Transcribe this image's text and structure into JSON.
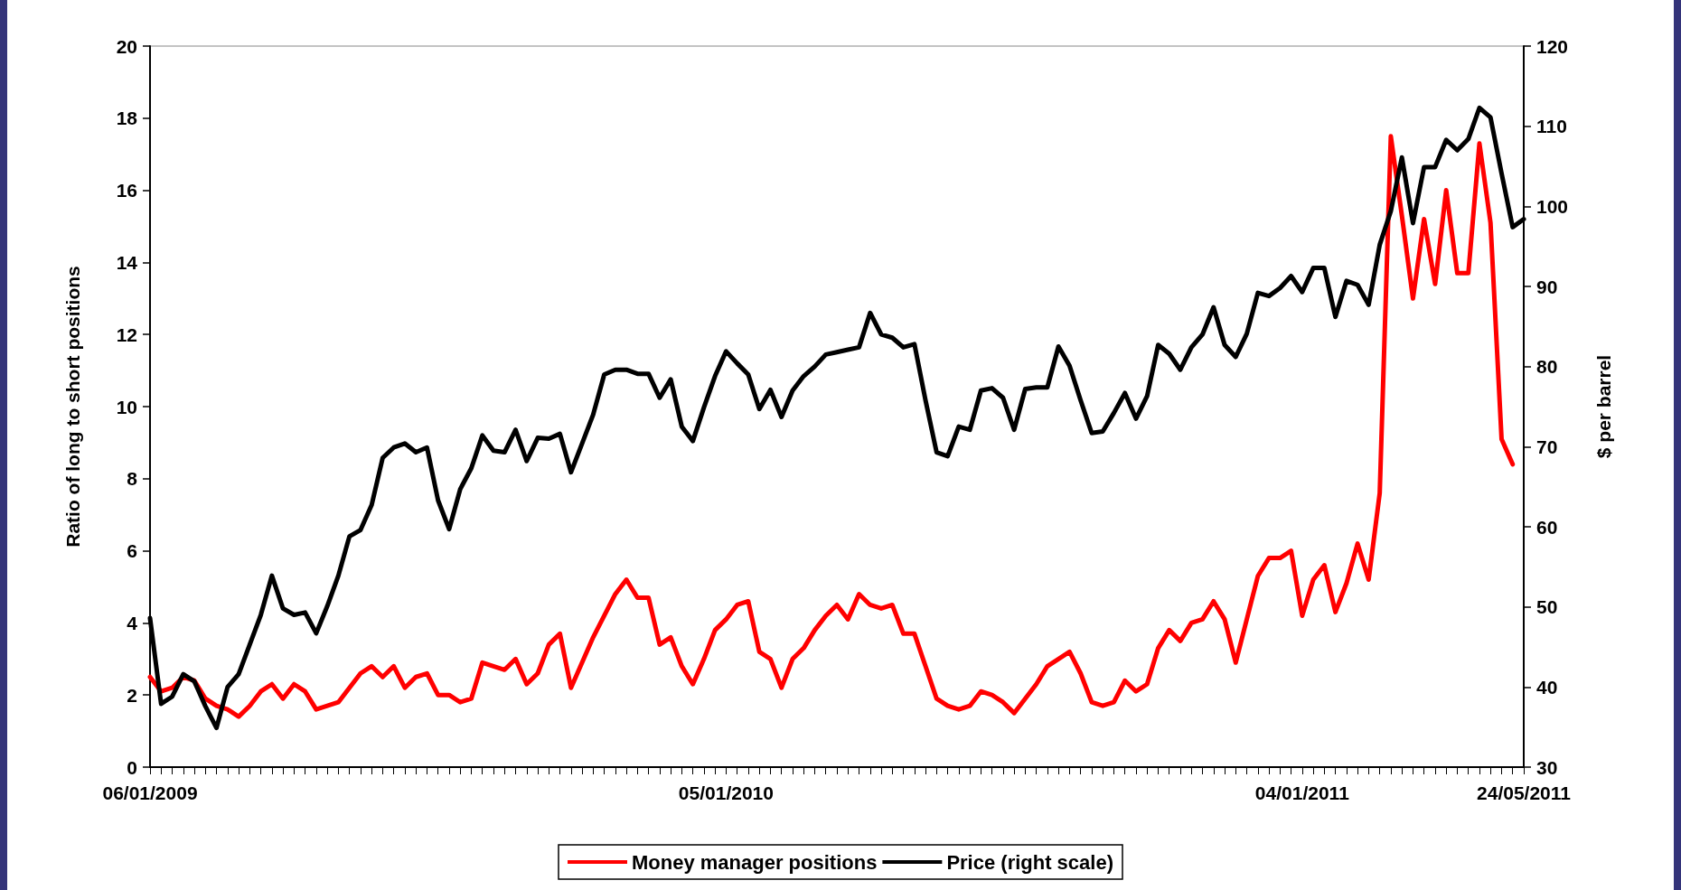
{
  "chart_data": {
    "type": "line",
    "ylabel": "Ratio of long to short positions",
    "y2label": "$ per barrel",
    "categories": [
      "06/01/2009",
      null,
      null,
      null,
      null,
      null,
      null,
      null,
      null,
      null,
      null,
      null,
      null,
      null,
      null,
      null,
      null,
      null,
      null,
      null,
      null,
      null,
      null,
      null,
      null,
      null,
      null,
      null,
      null,
      null,
      null,
      null,
      null,
      null,
      null,
      null,
      null,
      null,
      null,
      null,
      null,
      null,
      null,
      null,
      null,
      null,
      null,
      null,
      null,
      null,
      null,
      null,
      "05/01/2010",
      null,
      null,
      null,
      null,
      null,
      null,
      null,
      null,
      null,
      null,
      null,
      null,
      null,
      null,
      null,
      null,
      null,
      null,
      null,
      null,
      null,
      null,
      null,
      null,
      null,
      null,
      null,
      null,
      null,
      null,
      null,
      null,
      null,
      null,
      null,
      null,
      null,
      null,
      null,
      null,
      null,
      null,
      null,
      null,
      null,
      null,
      null,
      null,
      null,
      null,
      null,
      "04/01/2011",
      null,
      null,
      null,
      null,
      null,
      null,
      null,
      null,
      null,
      null,
      null,
      null,
      null,
      null,
      null,
      null,
      null,
      null,
      null,
      "24/05/2011"
    ],
    "series": [
      {
        "name": "Money manager positions",
        "color": "#ff0000",
        "values": [
          2.5,
          2.1,
          2.2,
          2.5,
          2.4,
          1.9,
          1.7,
          1.6,
          1.4,
          1.7,
          2.1,
          2.3,
          1.9,
          2.3,
          2.1,
          1.6,
          1.7,
          1.8,
          2.2,
          2.6,
          2.8,
          2.5,
          2.8,
          2.2,
          2.5,
          2.6,
          2.0,
          2.0,
          1.8,
          1.9,
          2.9,
          2.8,
          2.7,
          3.0,
          2.3,
          2.6,
          3.4,
          3.7,
          2.2,
          2.9,
          3.6,
          4.2,
          4.8,
          5.2,
          4.7,
          4.7,
          3.4,
          3.6,
          2.8,
          2.3,
          3.0,
          3.8,
          4.1,
          4.5,
          4.6,
          3.2,
          3.0,
          2.2,
          3.0,
          3.3,
          3.8,
          4.2,
          4.5,
          4.1,
          4.8,
          4.5,
          4.4,
          4.5,
          3.7,
          3.7,
          2.8,
          1.9,
          1.7,
          1.6,
          1.7,
          2.1,
          2.0,
          1.8,
          1.5,
          1.9,
          2.3,
          2.8,
          3.0,
          3.2,
          2.6,
          1.8,
          1.7,
          1.8,
          2.4,
          2.1,
          2.3,
          3.3,
          3.8,
          3.5,
          4.0,
          4.1,
          4.6,
          4.1,
          2.9,
          4.1,
          5.3,
          5.8,
          5.8,
          6.0,
          4.2,
          5.2,
          5.6,
          4.3,
          5.1,
          6.2,
          5.2,
          7.6,
          17.5,
          15.3,
          13.0,
          15.2,
          13.4,
          16.0,
          13.7,
          13.7,
          17.3,
          15.1,
          9.1,
          8.4,
          null
        ]
      },
      {
        "name": "Price (right scale)",
        "color": "#000000",
        "axis": "y2",
        "values": [
          48.6,
          37.9,
          38.8,
          41.6,
          40.7,
          37.6,
          34.9,
          40.0,
          41.6,
          45.3,
          49.0,
          53.9,
          49.8,
          49.0,
          49.3,
          46.7,
          50.1,
          53.9,
          58.8,
          59.6,
          62.7,
          68.6,
          69.9,
          70.4,
          69.3,
          69.9,
          63.3,
          59.7,
          64.7,
          67.3,
          71.4,
          69.5,
          69.3,
          72.1,
          68.2,
          71.1,
          71.0,
          71.6,
          66.8,
          70.4,
          74.0,
          79.0,
          79.6,
          79.6,
          79.1,
          79.1,
          76.1,
          78.4,
          72.5,
          70.7,
          74.9,
          78.8,
          81.9,
          80.4,
          79.0,
          74.7,
          77.1,
          73.7,
          77.0,
          78.8,
          80.0,
          81.5,
          81.8,
          82.1,
          82.4,
          86.7,
          84.0,
          83.6,
          82.4,
          82.8,
          75.8,
          69.3,
          68.8,
          72.5,
          72.1,
          77.0,
          77.3,
          76.1,
          72.1,
          77.2,
          77.4,
          77.4,
          82.5,
          80.1,
          75.8,
          71.7,
          71.9,
          74.2,
          76.7,
          73.5,
          76.3,
          82.7,
          81.6,
          79.6,
          82.4,
          84.0,
          87.4,
          82.7,
          81.2,
          84.1,
          89.2,
          88.8,
          89.8,
          91.3,
          89.3,
          92.3,
          92.3,
          86.2,
          90.7,
          90.2,
          87.7,
          95.2,
          99.4,
          106.1,
          97.9,
          104.9,
          104.9,
          108.3,
          107.0,
          108.4,
          112.3,
          111.1,
          104.1,
          97.4,
          98.4
        ]
      }
    ],
    "ylim": [
      0,
      20
    ],
    "yticks": [
      0,
      2,
      4,
      6,
      8,
      10,
      12,
      14,
      16,
      18,
      20
    ],
    "y2lim": [
      30,
      120
    ],
    "y2ticks": [
      30,
      40,
      50,
      60,
      70,
      80,
      90,
      100,
      110,
      120
    ],
    "legend": "bottom",
    "grid": false,
    "marker": "none",
    "line_style": "solid"
  }
}
